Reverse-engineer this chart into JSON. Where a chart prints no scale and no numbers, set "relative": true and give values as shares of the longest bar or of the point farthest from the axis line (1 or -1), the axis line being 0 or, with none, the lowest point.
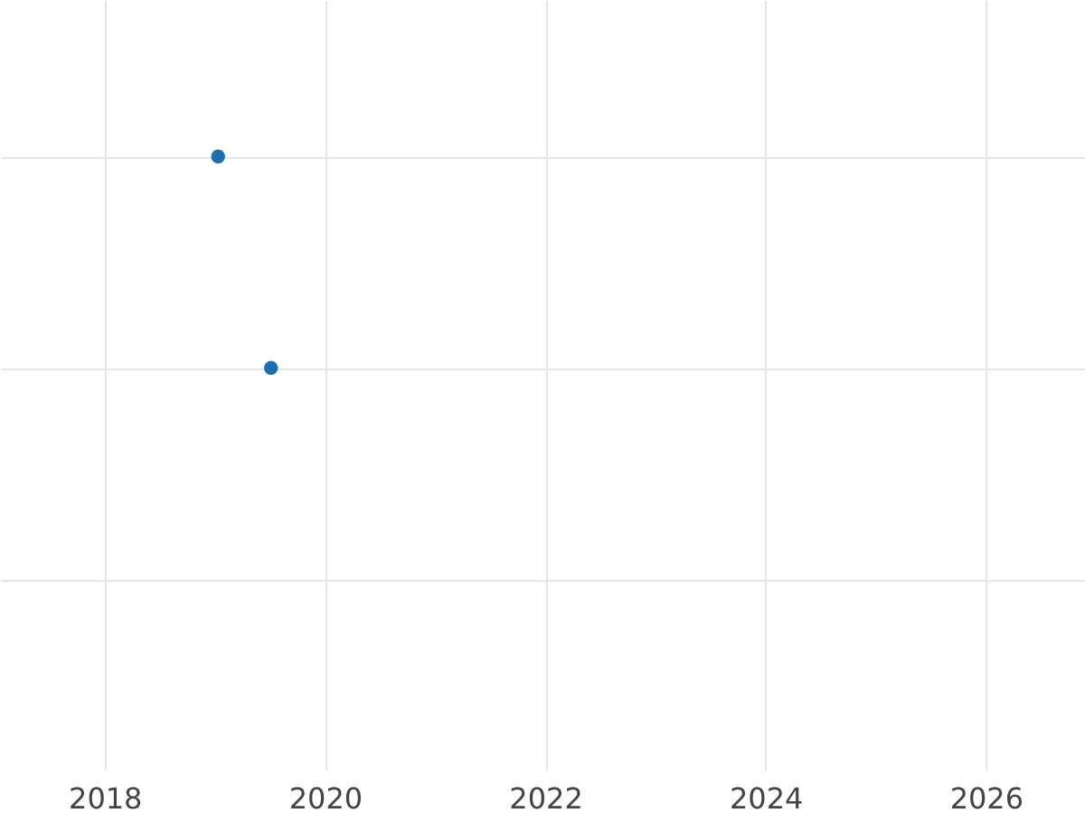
{
  "chart_data": {
    "type": "scatter",
    "relative": true,
    "x": [
      2019.03,
      2019.51
    ],
    "series": [
      {
        "color": "#1f6fb0",
        "values": [
          1,
          0
        ]
      }
    ],
    "xlim": [
      2017.05,
      2026.9
    ],
    "xticks": [
      2018,
      2020,
      2022,
      2024,
      2026
    ],
    "grid": true,
    "marker": "circle",
    "tick_labels": "x"
  }
}
